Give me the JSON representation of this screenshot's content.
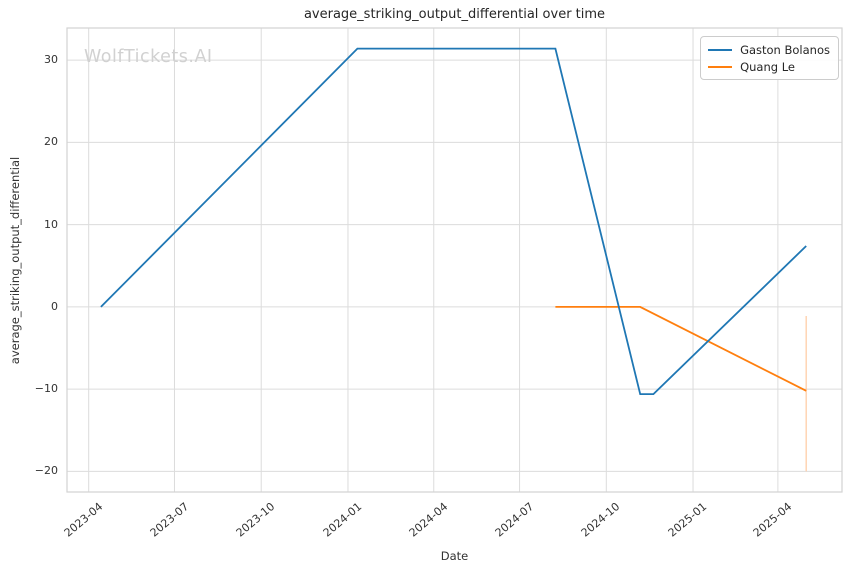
{
  "chart_data": {
    "type": "line",
    "title": "average_striking_output_differential over time",
    "xlabel": "Date",
    "ylabel": "average_striking_output_differential",
    "watermark": "WolfTickets.AI",
    "grid": true,
    "legend_position": "top-right",
    "x_tick_labels": [
      "2023-04",
      "2023-07",
      "2023-10",
      "2024-01",
      "2024-04",
      "2024-07",
      "2024-10",
      "2025-01",
      "2025-04"
    ],
    "y_ticks": [
      30,
      20,
      10,
      0,
      -10,
      -20
    ],
    "xlim": [
      "2023-03-09",
      "2025-06-08"
    ],
    "ylim": [
      -22.5,
      33.9
    ],
    "series": [
      {
        "name": "Gaston Bolanos",
        "color": "#1f77b4",
        "points": [
          [
            "2023-04-14",
            0.0
          ],
          [
            "2024-01-11",
            31.4
          ],
          [
            "2024-08-08",
            31.4
          ],
          [
            "2024-11-06",
            -10.6
          ],
          [
            "2024-11-20",
            -10.6
          ],
          [
            "2025-05-01",
            7.4
          ]
        ]
      },
      {
        "name": "Quang Le",
        "color": "#ff7f0e",
        "points": [
          [
            "2024-08-08",
            0.0
          ],
          [
            "2024-11-06",
            0.0
          ],
          [
            "2025-05-01",
            -10.2
          ]
        ],
        "error_bar": {
          "x": "2025-05-01",
          "y_min": -20.0,
          "y_max": -1.1,
          "color": "#ffc9a0"
        }
      }
    ],
    "colors": {
      "grid": "#dcdcdc",
      "spine": "#d3d3d3",
      "text": "#333333",
      "background": "#ffffff"
    }
  }
}
